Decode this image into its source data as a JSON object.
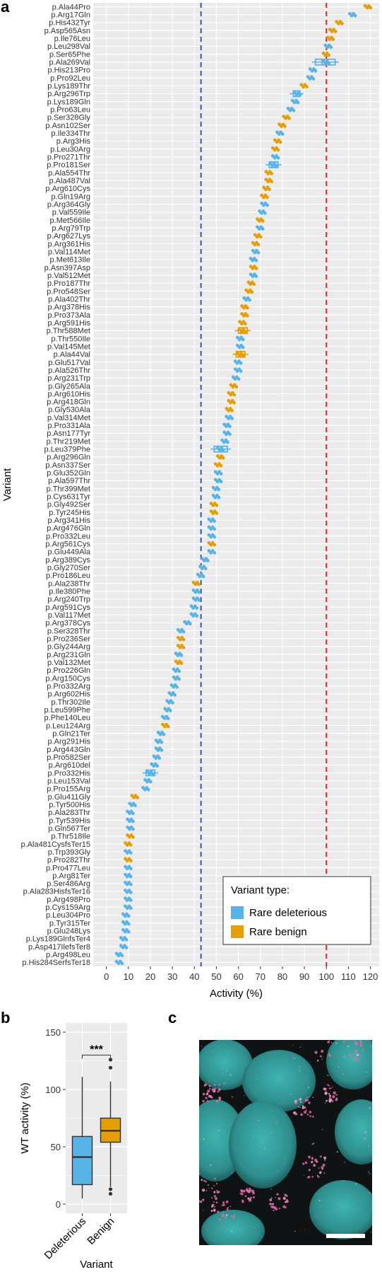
{
  "panel_labels": {
    "a": "a",
    "b": "b",
    "c": "c"
  },
  "colors": {
    "deleterious": "#56B4E9",
    "benign": "#E69F00",
    "wt_line": "#3A55A5",
    "ref_line": "#E4272A",
    "panel_bg": "#EBEBEB",
    "grid": "#FFFFFF"
  },
  "chart_data": [
    {
      "type": "scatter",
      "orientation": "horizontal",
      "title": "",
      "xlabel": "Activity (%)",
      "ylabel": "Variant",
      "xlim": [
        -6,
        124
      ],
      "xticks": [
        0,
        10,
        20,
        30,
        40,
        50,
        60,
        70,
        80,
        90,
        100,
        110,
        120
      ],
      "vlines": [
        {
          "x": 43,
          "color": "#3A55A5",
          "style": "dashed"
        },
        {
          "x": 100,
          "color": "#E4272A",
          "style": "dashed"
        }
      ],
      "legend": {
        "title": "Variant type:",
        "position": "bottom-right",
        "entries": [
          {
            "key": "D",
            "label": "Rare deleterious"
          },
          {
            "key": "B",
            "label": "Rare benign"
          }
        ]
      },
      "variants": [
        {
          "name": "p.Ala44Pro",
          "value": 119,
          "type": "B"
        },
        {
          "name": "p.Arg17Gln",
          "value": 112,
          "type": "D"
        },
        {
          "name": "p.His432Tyr",
          "value": 106,
          "type": "B"
        },
        {
          "name": "p.Asp565Asn",
          "value": 103,
          "type": "B"
        },
        {
          "name": "p.Ile76Leu",
          "value": 102,
          "type": "B"
        },
        {
          "name": "p.Leu298Val",
          "value": 101,
          "type": "D"
        },
        {
          "name": "p.Ser65Phe",
          "value": 100,
          "type": "B"
        },
        {
          "name": "p.Ala269Val",
          "value": 100,
          "type": "D",
          "box": [
            95,
            98,
            104
          ]
        },
        {
          "name": "p.His213Pro",
          "value": 94,
          "type": "D"
        },
        {
          "name": "p.Pro92Leu",
          "value": 93,
          "type": "D"
        },
        {
          "name": "p.Lys189Thr",
          "value": 90,
          "type": "B"
        },
        {
          "name": "p.Arg296Trp",
          "value": 87,
          "type": "D",
          "box": [
            85,
            86,
            88
          ]
        },
        {
          "name": "p.Lys189Gln",
          "value": 86,
          "type": "D"
        },
        {
          "name": "p.Pro63Leu",
          "value": 84,
          "type": "D"
        },
        {
          "name": "p.Ser328Gly",
          "value": 82,
          "type": "B"
        },
        {
          "name": "p.Asn102Ser",
          "value": 80,
          "type": "B"
        },
        {
          "name": "p.Ile334Thr",
          "value": 79,
          "type": "D"
        },
        {
          "name": "p.Arg3His",
          "value": 78,
          "type": "B"
        },
        {
          "name": "p.Leu30Arg",
          "value": 77,
          "type": "B"
        },
        {
          "name": "p.Pro271Thr",
          "value": 77,
          "type": "D"
        },
        {
          "name": "p.Pro181Ser",
          "value": 76,
          "type": "D",
          "box": [
            74,
            76,
            78
          ]
        },
        {
          "name": "p.Ala554Thr",
          "value": 74,
          "type": "B"
        },
        {
          "name": "p.Ala487Val",
          "value": 74,
          "type": "B"
        },
        {
          "name": "p.Arg610Cys",
          "value": 73,
          "type": "B"
        },
        {
          "name": "p.Gln19Arg",
          "value": 72,
          "type": "B"
        },
        {
          "name": "p.Arg364Gly",
          "value": 72,
          "type": "D"
        },
        {
          "name": "p.Val559Ile",
          "value": 71,
          "type": "D"
        },
        {
          "name": "p.Met566Ile",
          "value": 70,
          "type": "B"
        },
        {
          "name": "p.Arg79Trp",
          "value": 70,
          "type": "D"
        },
        {
          "name": "p.Arg627Lys",
          "value": 69,
          "type": "B"
        },
        {
          "name": "p.Arg361His",
          "value": 68,
          "type": "B"
        },
        {
          "name": "p.Val114Met",
          "value": 68,
          "type": "D"
        },
        {
          "name": "p.Met613Ile",
          "value": 67,
          "type": "D"
        },
        {
          "name": "p.Asn397Asp",
          "value": 67,
          "type": "B"
        },
        {
          "name": "p.Val512Met",
          "value": 67,
          "type": "D"
        },
        {
          "name": "p.Pro187Thr",
          "value": 66,
          "type": "B"
        },
        {
          "name": "p.Pro548Ser",
          "value": 65,
          "type": "B"
        },
        {
          "name": "p.Ala402Thr",
          "value": 64,
          "type": "D"
        },
        {
          "name": "p.Arg378His",
          "value": 63,
          "type": "B"
        },
        {
          "name": "p.Pro373Ala",
          "value": 63,
          "type": "B"
        },
        {
          "name": "p.Arg591His",
          "value": 62,
          "type": "B"
        },
        {
          "name": "p.Thr588Met",
          "value": 62,
          "type": "B",
          "box": [
            60,
            62,
            64
          ]
        },
        {
          "name": "p.Thr550Ile",
          "value": 61,
          "type": "D"
        },
        {
          "name": "p.Val145Met",
          "value": 61,
          "type": "D"
        },
        {
          "name": "p.Ala44Val",
          "value": 61,
          "type": "B",
          "box": [
            59,
            61,
            63
          ]
        },
        {
          "name": "p.Glu517Val",
          "value": 60,
          "type": "D"
        },
        {
          "name": "p.Ala526Thr",
          "value": 60,
          "type": "D"
        },
        {
          "name": "p.Arg231Trp",
          "value": 59,
          "type": "D"
        },
        {
          "name": "p.Gly265Ala",
          "value": 58,
          "type": "B"
        },
        {
          "name": "p.Arg610His",
          "value": 57,
          "type": "B"
        },
        {
          "name": "p.Arg418Gln",
          "value": 57,
          "type": "B"
        },
        {
          "name": "p.Gly530Ala",
          "value": 56,
          "type": "B"
        },
        {
          "name": "p.Val314Met",
          "value": 56,
          "type": "D"
        },
        {
          "name": "p.Pro331Ala",
          "value": 55,
          "type": "D"
        },
        {
          "name": "p.Asn177Tyr",
          "value": 55,
          "type": "D"
        },
        {
          "name": "p.Thr219Met",
          "value": 54,
          "type": "D"
        },
        {
          "name": "p.Leu379Phe",
          "value": 52,
          "type": "D",
          "box": [
            49,
            52,
            55
          ]
        },
        {
          "name": "p.Arg296Gln",
          "value": 52,
          "type": "B"
        },
        {
          "name": "p.Asn337Ser",
          "value": 51,
          "type": "B"
        },
        {
          "name": "p.Glu352Gln",
          "value": 51,
          "type": "D"
        },
        {
          "name": "p.Ala597Thr",
          "value": 51,
          "type": "D"
        },
        {
          "name": "p.Thr399Met",
          "value": 50,
          "type": "D"
        },
        {
          "name": "p.Cys631Tyr",
          "value": 50,
          "type": "D"
        },
        {
          "name": "p.Gly492Ser",
          "value": 49,
          "type": "B"
        },
        {
          "name": "p.Tyr245His",
          "value": 49,
          "type": "B"
        },
        {
          "name": "p.Arg341His",
          "value": 48,
          "type": "D"
        },
        {
          "name": "p.Arg476Gln",
          "value": 48,
          "type": "D"
        },
        {
          "name": "p.Pro332Leu",
          "value": 48,
          "type": "D"
        },
        {
          "name": "p.Arg561Cys",
          "value": 48,
          "type": "B"
        },
        {
          "name": "p.Glu449Ala",
          "value": 48,
          "type": "D"
        },
        {
          "name": "p.Arg389Cys",
          "value": 45,
          "type": "D"
        },
        {
          "name": "p.Gly270Ser",
          "value": 44,
          "type": "D"
        },
        {
          "name": "p.Pro186Leu",
          "value": 43,
          "type": "D"
        },
        {
          "name": "p.Ala238Thr",
          "value": 41,
          "type": "B"
        },
        {
          "name": "p.Ile380Phe",
          "value": 41,
          "type": "D"
        },
        {
          "name": "p.Arg240Trp",
          "value": 41,
          "type": "D"
        },
        {
          "name": "p.Arg591Cys",
          "value": 40,
          "type": "D"
        },
        {
          "name": "p.Val117Met",
          "value": 40,
          "type": "D"
        },
        {
          "name": "p.Arg378Cys",
          "value": 37,
          "type": "D"
        },
        {
          "name": "p.Ser328Thr",
          "value": 34,
          "type": "D"
        },
        {
          "name": "p.Pro236Ser",
          "value": 34,
          "type": "B"
        },
        {
          "name": "p.Gly244Arg",
          "value": 34,
          "type": "B"
        },
        {
          "name": "p.Arg231Gln",
          "value": 33,
          "type": "D"
        },
        {
          "name": "p.Val132Met",
          "value": 33,
          "type": "B"
        },
        {
          "name": "p.Pro226Gln",
          "value": 32,
          "type": "D"
        },
        {
          "name": "p.Arg150Cys",
          "value": 32,
          "type": "D"
        },
        {
          "name": "p.Pro332Arg",
          "value": 31,
          "type": "D"
        },
        {
          "name": "p.Arg602His",
          "value": 30,
          "type": "D"
        },
        {
          "name": "p.Thr302Ile",
          "value": 29,
          "type": "D"
        },
        {
          "name": "p.Leu599Phe",
          "value": 28,
          "type": "D"
        },
        {
          "name": "p.Phe140Leu",
          "value": 27,
          "type": "D"
        },
        {
          "name": "p.Leu124Arg",
          "value": 27,
          "type": "B"
        },
        {
          "name": "p.Gln21Ter",
          "value": 25,
          "type": "D"
        },
        {
          "name": "p.Arg291His",
          "value": 24,
          "type": "D"
        },
        {
          "name": "p.Arg443Gln",
          "value": 24,
          "type": "D"
        },
        {
          "name": "p.Pro582Ser",
          "value": 23,
          "type": "D"
        },
        {
          "name": "p.Arg610del",
          "value": 22,
          "type": "D"
        },
        {
          "name": "p.Pro332His",
          "value": 20,
          "type": "D",
          "box": [
            18,
            20,
            22
          ]
        },
        {
          "name": "p.Leu153Val",
          "value": 19,
          "type": "D"
        },
        {
          "name": "p.Pro155Arg",
          "value": 18,
          "type": "D"
        },
        {
          "name": "p.Glu411Gly",
          "value": 13,
          "type": "B"
        },
        {
          "name": "p.Tyr500His",
          "value": 12,
          "type": "D"
        },
        {
          "name": "p.Ala283Thr",
          "value": 11,
          "type": "D"
        },
        {
          "name": "p.Tyr539His",
          "value": 11,
          "type": "D"
        },
        {
          "name": "p.Gln567Ter",
          "value": 11,
          "type": "D"
        },
        {
          "name": "p.Thr518Ile",
          "value": 11,
          "type": "B"
        },
        {
          "name": "p.Ala481CysfsTer15",
          "value": 10,
          "type": "B"
        },
        {
          "name": "p.Trp393Gly",
          "value": 10,
          "type": "D"
        },
        {
          "name": "p.Pro282Thr",
          "value": 10,
          "type": "B"
        },
        {
          "name": "p.Pro477Leu",
          "value": 10,
          "type": "D"
        },
        {
          "name": "p.Arg81Ter",
          "value": 10,
          "type": "D"
        },
        {
          "name": "p.Ser486Arg",
          "value": 10,
          "type": "D"
        },
        {
          "name": "p.Ala283HisfsTer16",
          "value": 10,
          "type": "D"
        },
        {
          "name": "p.Arg498Pro",
          "value": 10,
          "type": "D"
        },
        {
          "name": "p.Cys159Arg",
          "value": 10,
          "type": "D"
        },
        {
          "name": "p.Leu304Pro",
          "value": 9,
          "type": "D"
        },
        {
          "name": "p.Tyr315Ter",
          "value": 9,
          "type": "D"
        },
        {
          "name": "p.Glu248Lys",
          "value": 9,
          "type": "D"
        },
        {
          "name": "p.Lys189GlnfsTer4",
          "value": 8,
          "type": "D"
        },
        {
          "name": "p.Asp417IlefsTer8",
          "value": 8,
          "type": "D"
        },
        {
          "name": "p.Arg498Leu",
          "value": 6,
          "type": "D"
        },
        {
          "name": "p.His284SerfsTer18",
          "value": 6,
          "type": "D"
        }
      ]
    },
    {
      "type": "box",
      "title": "",
      "xlabel": "Variant",
      "ylabel": "WT activity (%)",
      "ylim": [
        -8,
        158
      ],
      "yticks": [
        0,
        50,
        100,
        150
      ],
      "categories": [
        "Deleterious",
        "Benign"
      ],
      "boxes": [
        {
          "category": "Deleterious",
          "color": "#56B4E9",
          "min": 5,
          "q1": 17,
          "median": 41,
          "q3": 59,
          "max": 111,
          "outliers": []
        },
        {
          "category": "Benign",
          "color": "#E69F00",
          "min": 15,
          "q1": 54,
          "median": 64,
          "q3": 75,
          "max": 107,
          "outliers": [
            119,
            126,
            9,
            13
          ]
        }
      ],
      "significance": "***"
    }
  ]
}
